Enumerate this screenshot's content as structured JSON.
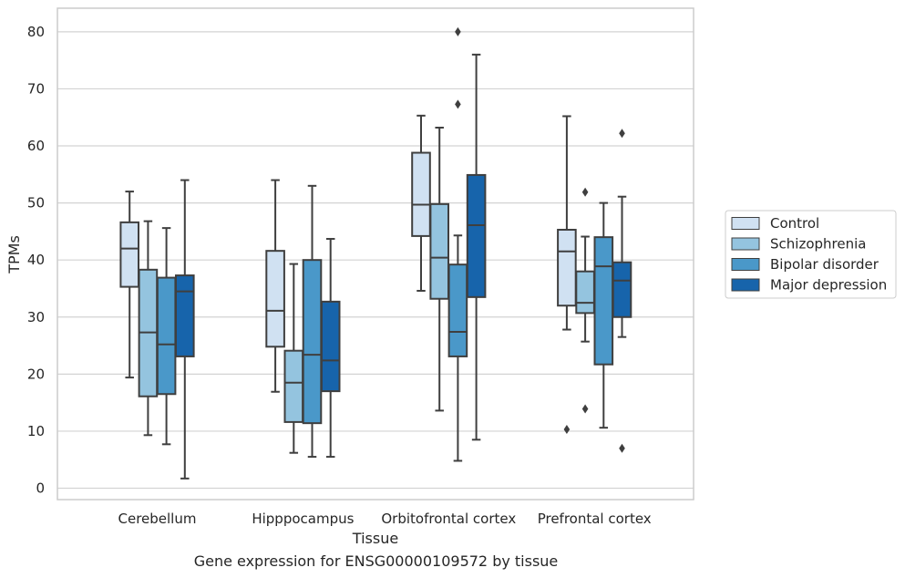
{
  "chart_data": {
    "type": "box",
    "xlabel": "Tissue",
    "ylabel": "TPMs",
    "caption": "Gene expression for ENSG00000109572 by tissue",
    "ylim": [
      -2,
      84
    ],
    "yticks": [
      0,
      10,
      20,
      30,
      40,
      50,
      60,
      70,
      80
    ],
    "grid": "horizontal",
    "legend_placement": "right",
    "categories": [
      "Cerebellum",
      "Hipppocampus",
      "Orbitofrontal cortex",
      "Prefrontal cortex"
    ],
    "series": [
      {
        "name": "Control",
        "color": "#d0e1f2",
        "boxes": [
          {
            "whislo": 19.4,
            "q1": 35.3,
            "med": 42.0,
            "q3": 46.6,
            "whishi": 52.0,
            "fliers": []
          },
          {
            "whislo": 16.9,
            "q1": 24.8,
            "med": 31.1,
            "q3": 41.6,
            "whishi": 54.0,
            "fliers": []
          },
          {
            "whislo": 34.6,
            "q1": 44.2,
            "med": 49.7,
            "q3": 58.8,
            "whishi": 65.3,
            "fliers": []
          },
          {
            "whislo": 27.8,
            "q1": 32.0,
            "med": 41.5,
            "q3": 45.3,
            "whishi": 65.2,
            "fliers": [
              10.3
            ]
          }
        ]
      },
      {
        "name": "Schizophrenia",
        "color": "#94c4df",
        "boxes": [
          {
            "whislo": 9.3,
            "q1": 16.1,
            "med": 27.3,
            "q3": 38.3,
            "whishi": 46.8,
            "fliers": []
          },
          {
            "whislo": 6.2,
            "q1": 11.6,
            "med": 18.5,
            "q3": 24.1,
            "whishi": 39.3,
            "fliers": []
          },
          {
            "whislo": 13.6,
            "q1": 33.2,
            "med": 40.4,
            "q3": 49.8,
            "whishi": 63.2,
            "fliers": []
          },
          {
            "whislo": 25.7,
            "q1": 30.7,
            "med": 32.5,
            "q3": 38.0,
            "whishi": 44.1,
            "fliers": [
              13.9,
              51.9
            ]
          }
        ]
      },
      {
        "name": "Bipolar disorder",
        "color": "#4a98c9",
        "boxes": [
          {
            "whislo": 7.7,
            "q1": 16.5,
            "med": 25.2,
            "q3": 36.9,
            "whishi": 45.6,
            "fliers": []
          },
          {
            "whislo": 5.5,
            "q1": 11.4,
            "med": 23.4,
            "q3": 40.0,
            "whishi": 53.0,
            "fliers": []
          },
          {
            "whislo": 4.8,
            "q1": 23.1,
            "med": 27.4,
            "q3": 39.2,
            "whishi": 44.3,
            "fliers": [
              67.3,
              80.0
            ]
          },
          {
            "whislo": 10.6,
            "q1": 21.7,
            "med": 38.9,
            "q3": 44.0,
            "whishi": 50.0,
            "fliers": []
          }
        ]
      },
      {
        "name": "Major depression",
        "color": "#1764ab",
        "boxes": [
          {
            "whislo": 1.7,
            "q1": 23.1,
            "med": 34.5,
            "q3": 37.3,
            "whishi": 54.0,
            "fliers": []
          },
          {
            "whislo": 5.5,
            "q1": 17.0,
            "med": 22.4,
            "q3": 32.7,
            "whishi": 43.7,
            "fliers": []
          },
          {
            "whislo": 8.5,
            "q1": 33.5,
            "med": 46.1,
            "q3": 54.9,
            "whishi": 76.0,
            "fliers": []
          },
          {
            "whislo": 26.5,
            "q1": 30.0,
            "med": 36.4,
            "q3": 39.6,
            "whishi": 51.1,
            "fliers": [
              7.0,
              62.2
            ]
          }
        ]
      }
    ]
  }
}
